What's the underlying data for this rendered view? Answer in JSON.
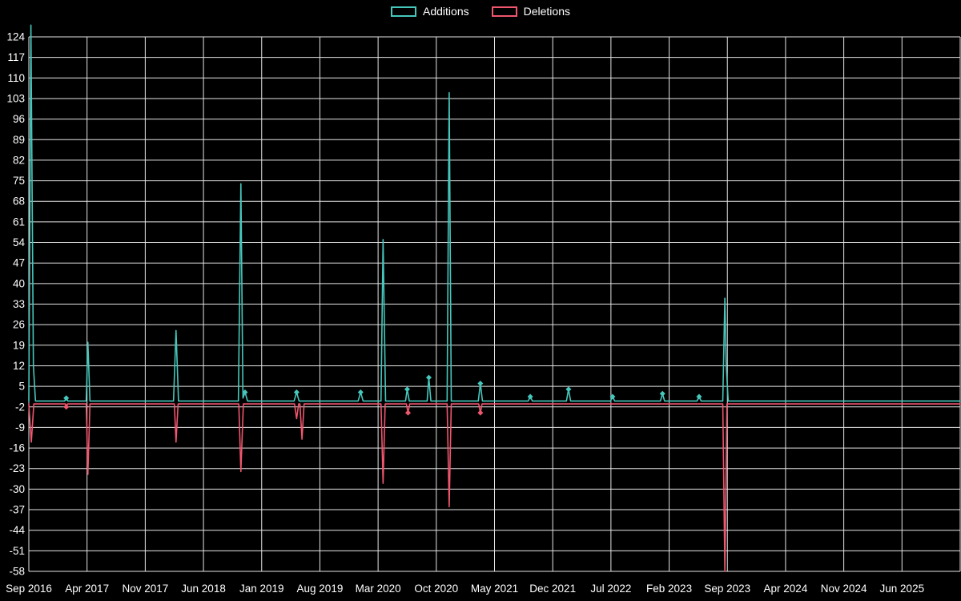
{
  "chart_data": {
    "type": "line",
    "title": "",
    "legend": [
      "Additions",
      "Deletions"
    ],
    "legend_position": "top-center",
    "background_color": "#000000",
    "grid_color": "#e6e6e6",
    "text_color": "#ffffff",
    "grid": true,
    "colors": {
      "additions": "#46c7bc",
      "deletions": "#f0566e"
    },
    "y_axis": {
      "min": -58,
      "max": 124,
      "step": 7,
      "tick_values": [
        124,
        117,
        110,
        103,
        96,
        89,
        82,
        75,
        68,
        61,
        54,
        47,
        40,
        33,
        26,
        19,
        12,
        5,
        -2,
        -9,
        -16,
        -23,
        -30,
        -37,
        -44,
        -51,
        -58
      ]
    },
    "x_axis": {
      "tick_labels": [
        "Sep 2016",
        "Apr 2017",
        "Nov 2017",
        "Jun 2018",
        "Jan 2019",
        "Aug 2019",
        "Mar 2020",
        "Oct 2020",
        "May 2021",
        "Dec 2021",
        "Jul 2022",
        "Feb 2023",
        "Sep 2023",
        "Apr 2024",
        "Nov 2024",
        "Jun 2025"
      ],
      "months_per_tick": 7,
      "domain_months": [
        0,
        112
      ]
    },
    "series": [
      {
        "name": "Additions",
        "color": "#46c7bc",
        "baseline": 0,
        "points": [
          [
            0,
            0
          ],
          [
            0.25,
            128
          ],
          [
            0.55,
            12
          ],
          [
            0.8,
            0
          ],
          [
            4.3,
            0
          ],
          [
            4.5,
            1
          ],
          [
            4.7,
            0
          ],
          [
            6.9,
            0
          ],
          [
            7.1,
            20
          ],
          [
            7.35,
            0
          ],
          [
            17.4,
            0
          ],
          [
            17.7,
            24
          ],
          [
            18.0,
            0
          ],
          [
            25.2,
            0
          ],
          [
            25.5,
            74
          ],
          [
            25.75,
            1
          ],
          [
            26.0,
            3
          ],
          [
            26.3,
            0
          ],
          [
            31.9,
            0
          ],
          [
            32.2,
            3
          ],
          [
            32.5,
            0
          ],
          [
            39.6,
            0
          ],
          [
            39.9,
            3
          ],
          [
            40.2,
            0
          ],
          [
            42.35,
            0
          ],
          [
            42.6,
            55
          ],
          [
            42.9,
            0
          ],
          [
            45.3,
            0
          ],
          [
            45.5,
            4
          ],
          [
            45.75,
            0
          ],
          [
            47.9,
            0
          ],
          [
            48.1,
            8
          ],
          [
            48.35,
            0
          ],
          [
            50.3,
            0
          ],
          [
            50.55,
            105
          ],
          [
            50.8,
            0
          ],
          [
            54.05,
            0
          ],
          [
            54.3,
            6
          ],
          [
            54.55,
            0
          ],
          [
            60.05,
            0
          ],
          [
            60.3,
            1.5
          ],
          [
            60.55,
            0
          ],
          [
            64.65,
            0
          ],
          [
            64.9,
            4
          ],
          [
            65.15,
            0
          ],
          [
            69.95,
            0
          ],
          [
            70.2,
            1.5
          ],
          [
            70.45,
            0
          ],
          [
            75.95,
            0
          ],
          [
            76.2,
            2.5
          ],
          [
            76.45,
            0
          ],
          [
            80.35,
            0
          ],
          [
            80.6,
            1.5
          ],
          [
            80.85,
            0
          ],
          [
            83.45,
            0
          ],
          [
            83.7,
            35
          ],
          [
            83.85,
            13
          ],
          [
            84.1,
            0
          ],
          [
            112,
            0
          ]
        ],
        "marker_points": [
          [
            4.5,
            1
          ],
          [
            26.0,
            3
          ],
          [
            32.2,
            3
          ],
          [
            39.9,
            3
          ],
          [
            45.5,
            4
          ],
          [
            48.1,
            8
          ],
          [
            54.3,
            6
          ],
          [
            60.3,
            1.5
          ],
          [
            64.9,
            4
          ],
          [
            70.2,
            1.5
          ],
          [
            76.2,
            2.5
          ],
          [
            80.6,
            1.5
          ]
        ]
      },
      {
        "name": "Deletions",
        "color": "#f0566e",
        "baseline": -1,
        "points": [
          [
            0,
            -1
          ],
          [
            0.3,
            -14
          ],
          [
            0.6,
            -1
          ],
          [
            4.4,
            -1
          ],
          [
            4.5,
            -2
          ],
          [
            4.65,
            -1
          ],
          [
            6.9,
            -1
          ],
          [
            7.1,
            -25
          ],
          [
            7.35,
            -1
          ],
          [
            17.5,
            -1
          ],
          [
            17.7,
            -14
          ],
          [
            17.95,
            -1
          ],
          [
            25.25,
            -1
          ],
          [
            25.5,
            -24
          ],
          [
            25.8,
            -1
          ],
          [
            31.95,
            -1
          ],
          [
            32.2,
            -6
          ],
          [
            32.45,
            -1
          ],
          [
            32.6,
            -1
          ],
          [
            32.85,
            -13
          ],
          [
            33.1,
            -1
          ],
          [
            42.35,
            -1
          ],
          [
            42.6,
            -28
          ],
          [
            42.85,
            -1
          ],
          [
            45.4,
            -1
          ],
          [
            45.6,
            -4
          ],
          [
            45.8,
            -1
          ],
          [
            50.3,
            -1
          ],
          [
            50.55,
            -36
          ],
          [
            50.8,
            -1
          ],
          [
            54.1,
            -1
          ],
          [
            54.3,
            -4
          ],
          [
            54.5,
            -1
          ],
          [
            83.45,
            -1
          ],
          [
            83.7,
            -58
          ],
          [
            83.95,
            -1
          ],
          [
            112,
            -1
          ]
        ],
        "marker_points": [
          [
            4.5,
            -2
          ],
          [
            45.6,
            -4
          ],
          [
            54.3,
            -4
          ]
        ]
      }
    ]
  }
}
